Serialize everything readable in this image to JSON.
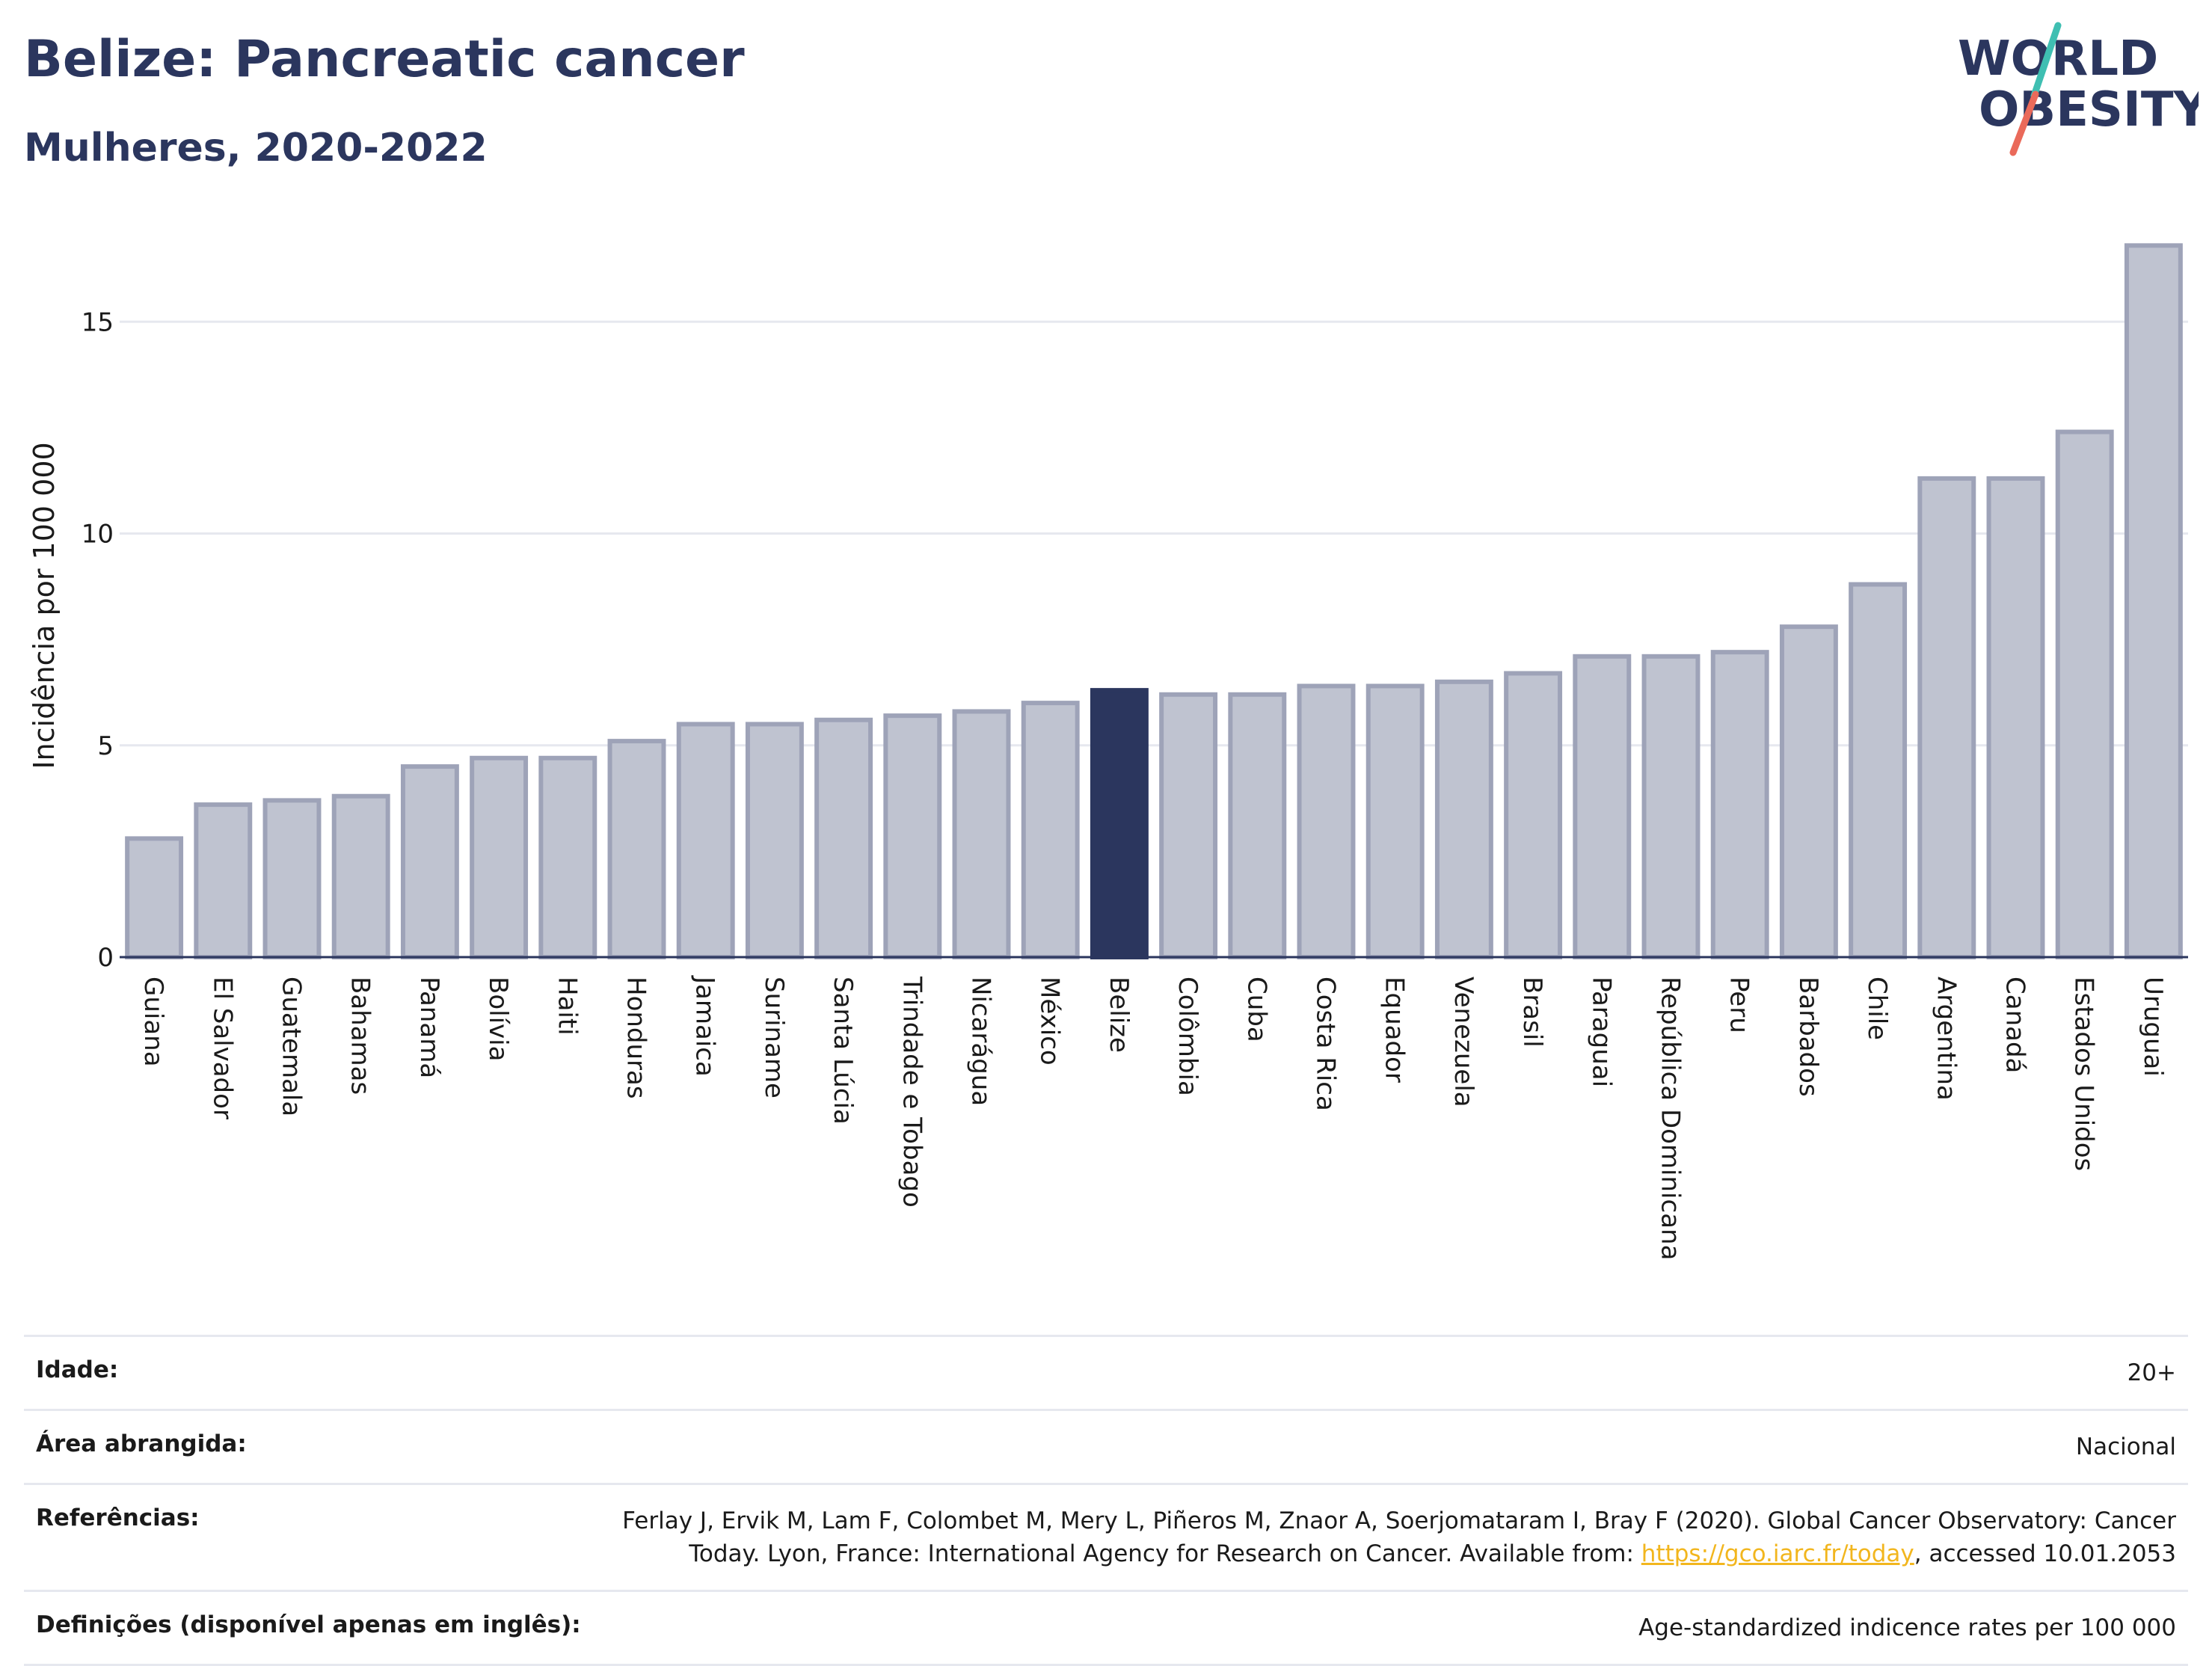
{
  "header": {
    "title": "Belize: Pancreatic cancer",
    "subtitle": "Mulheres, 2020-2022"
  },
  "logo": {
    "line1": "WORLD",
    "line2": "OBESITY"
  },
  "chart_data": {
    "type": "bar",
    "ylabel": "Incidência por 100 000",
    "ylim": [
      0,
      17
    ],
    "yticks": [
      0,
      5,
      10,
      15
    ],
    "grid": true,
    "highlight": "Belize",
    "colors": {
      "bar": "#bfc3d0",
      "bar_stroke": "#9ea3b8",
      "highlight": "#2b365e",
      "grid": "#e6e8ef",
      "axis": "#2b365e"
    },
    "categories": [
      "Guiana",
      "El Salvador",
      "Guatemala",
      "Bahamas",
      "Panamá",
      "Bolívia",
      "Haiti",
      "Honduras",
      "Jamaica",
      "Suriname",
      "Santa Lúcia",
      "Trindade e Tobago",
      "Nicarágua",
      "México",
      "Belize",
      "Colômbia",
      "Cuba",
      "Costa Rica",
      "Equador",
      "Venezuela",
      "Brasil",
      "Paraguai",
      "República Dominicana",
      "Peru",
      "Barbados",
      "Chile",
      "Argentina",
      "Canadá",
      "Estados Unidos",
      "Uruguai"
    ],
    "values": [
      2.8,
      3.6,
      3.7,
      3.8,
      4.5,
      4.7,
      4.7,
      5.1,
      5.5,
      5.5,
      5.6,
      5.7,
      5.8,
      6.0,
      6.3,
      6.2,
      6.2,
      6.4,
      6.4,
      6.5,
      6.7,
      7.1,
      7.1,
      7.2,
      7.8,
      8.8,
      11.3,
      11.3,
      12.4,
      16.8
    ]
  },
  "info": {
    "rows": [
      {
        "label": "Idade:",
        "value": "20+"
      },
      {
        "label": "Área abrangida:",
        "value": "Nacional"
      },
      {
        "label": "Referências:",
        "value": "Ferlay J, Ervik M, Lam F, Colombet M, Mery L, Piñeros M, Znaor A, Soerjomataram I, Bray F (2020). Global Cancer Observatory: Cancer Today. Lyon, France: International Agency for Research on Cancer. Available from:",
        "link": "https://gco.iarc.fr/today",
        "suffix": ", accessed 10.01.2053"
      },
      {
        "label": "Definições (disponível apenas em inglês):",
        "value": "Age-standardized indicence rates per 100 000"
      }
    ]
  }
}
